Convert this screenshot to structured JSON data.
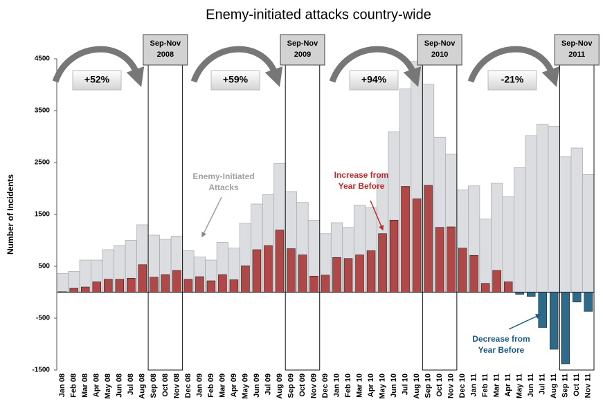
{
  "chart_data": {
    "type": "bar",
    "title": "Enemy-initiated attacks country-wide",
    "y_label": "Number of Incidents",
    "categories": [
      "Jan 08",
      "Feb 08",
      "Mar 08",
      "Apr 08",
      "May 08",
      "Jun 08",
      "Jul 08",
      "Aug 08",
      "Sep 08",
      "Oct 08",
      "Nov 08",
      "Dec 08",
      "Jan 09",
      "Feb 09",
      "Mar 09",
      "Apr 09",
      "May 09",
      "Jun 09",
      "Jul 09",
      "Aug 09",
      "Sep 09",
      "Oct 09",
      "Nov 09",
      "Dec 09",
      "Jan 10",
      "Feb 10",
      "Mar 10",
      "Apr 10",
      "May 10",
      "Jun 10",
      "Jul 10",
      "Aug 10",
      "Sep 10",
      "Oct 10",
      "Nov 10",
      "Dec 10",
      "Jan 11",
      "Feb 11",
      "Mar 11",
      "Apr 11",
      "May 11",
      "Jun 11",
      "Jul 11",
      "Aug 11",
      "Sep 11",
      "Oct 11",
      "Nov 11"
    ],
    "series": [
      {
        "name": "Enemy-Initiated Attacks",
        "color": "#dcdde0",
        "values": [
          360,
          400,
          620,
          620,
          820,
          900,
          1000,
          1300,
          1100,
          1020,
          1080,
          800,
          680,
          620,
          960,
          850,
          1330,
          1700,
          1880,
          2480,
          1940,
          1730,
          1390,
          1130,
          1340,
          1250,
          1680,
          1630,
          2280,
          3090,
          3920,
          4450,
          4010,
          2990,
          2660,
          1970,
          2050,
          1410,
          2100,
          1840,
          2400,
          3020,
          3240,
          3200,
          2610,
          2780,
          2270
        ]
      },
      {
        "name": "Change from Year Before",
        "color": "#b04848",
        "negative_color": "#2e6b8a",
        "values": [
          10,
          80,
          100,
          200,
          250,
          250,
          270,
          530,
          290,
          340,
          420,
          250,
          300,
          220,
          340,
          240,
          510,
          820,
          900,
          1200,
          840,
          720,
          310,
          330,
          670,
          650,
          720,
          800,
          1130,
          1390,
          2040,
          1800,
          2060,
          1250,
          1260,
          850,
          710,
          170,
          420,
          200,
          -40,
          -80,
          -680,
          -1100,
          -1380,
          -190,
          -370
        ]
      }
    ],
    "ylim": [
      -1500,
      4500
    ],
    "yticks": [
      -1500,
      -500,
      500,
      1500,
      2500,
      3500,
      4500
    ],
    "windows": [
      [
        "Sep-Nov",
        "2008"
      ],
      [
        "Sep-Nov",
        "2009"
      ],
      [
        "Sep-Nov",
        "2010"
      ],
      [
        "Sep-Nov",
        "2011"
      ]
    ],
    "changes": [
      "+52%",
      "+59%",
      "+94%",
      "-21%"
    ],
    "annotations": [
      {
        "lines": [
          "Enemy-Initiated",
          "Attacks"
        ],
        "color": "#a0a0a0"
      },
      {
        "lines": [
          "Increase from",
          "Year Before"
        ],
        "color": "#c0282a"
      },
      {
        "lines": [
          "Decrease from",
          "Year Before"
        ],
        "color": "#1a5a80"
      }
    ]
  }
}
